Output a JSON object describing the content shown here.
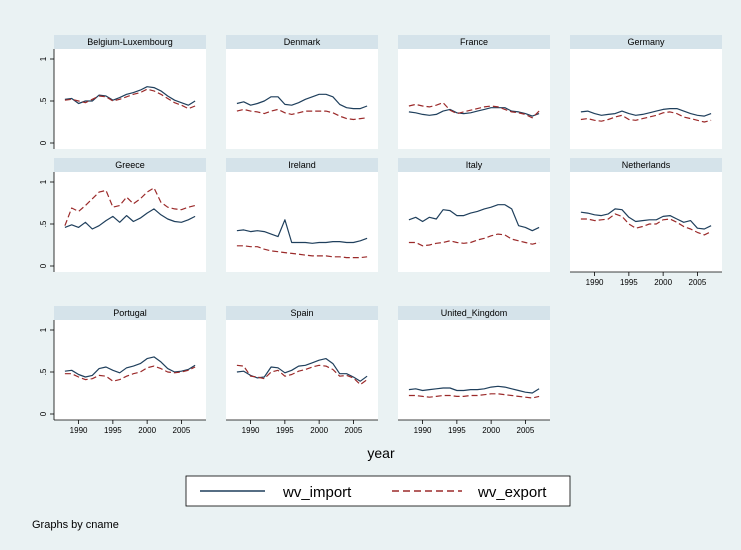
{
  "chart_data": {
    "type": "line",
    "panels": [
      {
        "title": "Belgium-Luxembourg",
        "import": [
          0.52,
          0.53,
          0.47,
          0.5,
          0.5,
          0.57,
          0.56,
          0.51,
          0.54,
          0.58,
          0.6,
          0.63,
          0.67,
          0.66,
          0.62,
          0.56,
          0.51,
          0.48,
          0.45,
          0.5
        ],
        "export": [
          0.51,
          0.52,
          0.5,
          0.48,
          0.52,
          0.56,
          0.55,
          0.5,
          0.52,
          0.55,
          0.58,
          0.6,
          0.64,
          0.62,
          0.58,
          0.53,
          0.48,
          0.45,
          0.41,
          0.44
        ]
      },
      {
        "title": "Denmark",
        "import": [
          0.47,
          0.49,
          0.45,
          0.47,
          0.5,
          0.55,
          0.55,
          0.46,
          0.45,
          0.48,
          0.52,
          0.55,
          0.58,
          0.58,
          0.55,
          0.46,
          0.42,
          0.41,
          0.41,
          0.44
        ],
        "export": [
          0.38,
          0.4,
          0.38,
          0.37,
          0.35,
          0.38,
          0.4,
          0.36,
          0.34,
          0.36,
          0.38,
          0.38,
          0.38,
          0.38,
          0.36,
          0.32,
          0.29,
          0.28,
          0.29,
          0.3
        ]
      },
      {
        "title": "France",
        "import": [
          0.37,
          0.36,
          0.34,
          0.33,
          0.34,
          0.38,
          0.4,
          0.36,
          0.35,
          0.36,
          0.38,
          0.4,
          0.42,
          0.42,
          0.42,
          0.38,
          0.37,
          0.35,
          0.32,
          0.35
        ],
        "export": [
          0.44,
          0.46,
          0.44,
          0.43,
          0.45,
          0.48,
          0.39,
          0.35,
          0.37,
          0.39,
          0.41,
          0.43,
          0.44,
          0.43,
          0.4,
          0.37,
          0.36,
          0.34,
          0.3,
          0.38
        ]
      },
      {
        "title": "Germany",
        "import": [
          0.37,
          0.38,
          0.35,
          0.33,
          0.34,
          0.35,
          0.38,
          0.35,
          0.33,
          0.34,
          0.36,
          0.38,
          0.4,
          0.41,
          0.41,
          0.38,
          0.35,
          0.33,
          0.32,
          0.35
        ],
        "export": [
          0.28,
          0.29,
          0.27,
          0.26,
          0.28,
          0.31,
          0.33,
          0.28,
          0.27,
          0.29,
          0.31,
          0.33,
          0.36,
          0.37,
          0.35,
          0.31,
          0.29,
          0.27,
          0.25,
          0.27
        ]
      },
      {
        "title": "Greece",
        "import": [
          0.46,
          0.49,
          0.46,
          0.52,
          0.44,
          0.48,
          0.54,
          0.59,
          0.52,
          0.6,
          0.53,
          0.57,
          0.63,
          0.68,
          0.61,
          0.56,
          0.53,
          0.52,
          0.55,
          0.59
        ],
        "export": [
          0.48,
          0.69,
          0.65,
          0.72,
          0.8,
          0.88,
          0.9,
          0.7,
          0.72,
          0.82,
          0.74,
          0.8,
          0.88,
          0.93,
          0.76,
          0.7,
          0.68,
          0.67,
          0.7,
          0.72
        ]
      },
      {
        "title": "Ireland",
        "import": [
          0.42,
          0.43,
          0.41,
          0.42,
          0.41,
          0.38,
          0.35,
          0.55,
          0.28,
          0.28,
          0.28,
          0.27,
          0.28,
          0.28,
          0.29,
          0.29,
          0.28,
          0.28,
          0.3,
          0.33
        ],
        "export": [
          0.24,
          0.24,
          0.23,
          0.23,
          0.2,
          0.18,
          0.17,
          0.16,
          0.15,
          0.14,
          0.13,
          0.12,
          0.12,
          0.12,
          0.11,
          0.11,
          0.1,
          0.1,
          0.1,
          0.11
        ]
      },
      {
        "title": "Italy",
        "import": [
          0.55,
          0.58,
          0.53,
          0.58,
          0.56,
          0.67,
          0.66,
          0.6,
          0.6,
          0.63,
          0.65,
          0.68,
          0.7,
          0.73,
          0.73,
          0.68,
          0.48,
          0.46,
          0.42,
          0.46
        ],
        "export": [
          0.28,
          0.28,
          0.24,
          0.25,
          0.27,
          0.28,
          0.3,
          0.28,
          0.27,
          0.28,
          0.31,
          0.33,
          0.36,
          0.38,
          0.37,
          0.32,
          0.3,
          0.28,
          0.26,
          0.28
        ]
      },
      {
        "title": "Netherlands",
        "import": [
          0.64,
          0.63,
          0.61,
          0.6,
          0.62,
          0.68,
          0.67,
          0.58,
          0.53,
          0.54,
          0.55,
          0.55,
          0.59,
          0.6,
          0.56,
          0.52,
          0.54,
          0.45,
          0.44,
          0.48
        ],
        "export": [
          0.56,
          0.56,
          0.54,
          0.55,
          0.56,
          0.62,
          0.59,
          0.5,
          0.45,
          0.47,
          0.5,
          0.5,
          0.55,
          0.56,
          0.52,
          0.47,
          0.44,
          0.4,
          0.37,
          0.41
        ]
      },
      {
        "title": "Portugal",
        "import": [
          0.51,
          0.52,
          0.47,
          0.44,
          0.46,
          0.54,
          0.56,
          0.52,
          0.49,
          0.55,
          0.57,
          0.6,
          0.66,
          0.68,
          0.62,
          0.54,
          0.5,
          0.51,
          0.53,
          0.58
        ],
        "export": [
          0.48,
          0.48,
          0.44,
          0.41,
          0.42,
          0.46,
          0.45,
          0.39,
          0.41,
          0.45,
          0.48,
          0.5,
          0.55,
          0.57,
          0.54,
          0.5,
          0.49,
          0.5,
          0.52,
          0.56
        ]
      },
      {
        "title": "Spain",
        "import": [
          0.5,
          0.51,
          0.46,
          0.43,
          0.44,
          0.56,
          0.55,
          0.49,
          0.52,
          0.57,
          0.58,
          0.61,
          0.64,
          0.66,
          0.6,
          0.48,
          0.48,
          0.44,
          0.39,
          0.45
        ],
        "export": [
          0.58,
          0.57,
          0.45,
          0.44,
          0.42,
          0.5,
          0.52,
          0.45,
          0.47,
          0.51,
          0.53,
          0.56,
          0.58,
          0.57,
          0.53,
          0.45,
          0.46,
          0.43,
          0.35,
          0.41
        ]
      },
      {
        "title": "United_Kingdom",
        "import": [
          0.29,
          0.3,
          0.28,
          0.29,
          0.3,
          0.31,
          0.31,
          0.28,
          0.28,
          0.29,
          0.29,
          0.3,
          0.32,
          0.33,
          0.32,
          0.3,
          0.28,
          0.26,
          0.25,
          0.3
        ],
        "export": [
          0.22,
          0.22,
          0.21,
          0.2,
          0.21,
          0.22,
          0.22,
          0.21,
          0.21,
          0.22,
          0.22,
          0.23,
          0.24,
          0.24,
          0.23,
          0.22,
          0.21,
          0.2,
          0.19,
          0.21
        ]
      }
    ],
    "x": [
      1988,
      1989,
      1990,
      1991,
      1992,
      1993,
      1994,
      1995,
      1996,
      1997,
      1998,
      1999,
      2000,
      2001,
      2002,
      2003,
      2004,
      2005,
      2006,
      2007
    ],
    "xlim": [
      1987,
      2008
    ],
    "ylim": [
      0,
      1
    ],
    "x_ticks": [
      "1990",
      "1995",
      "2000",
      "2005"
    ],
    "y_ticks": [
      "0",
      ".5",
      "1"
    ],
    "xlabel": "year",
    "series": [
      {
        "name": "wv_import",
        "color": "#1f3f5c",
        "dash": "solid"
      },
      {
        "name": "wv_export",
        "color": "#9b2a2a",
        "dash": "dashed"
      }
    ],
    "note": "Graphs by cname"
  }
}
